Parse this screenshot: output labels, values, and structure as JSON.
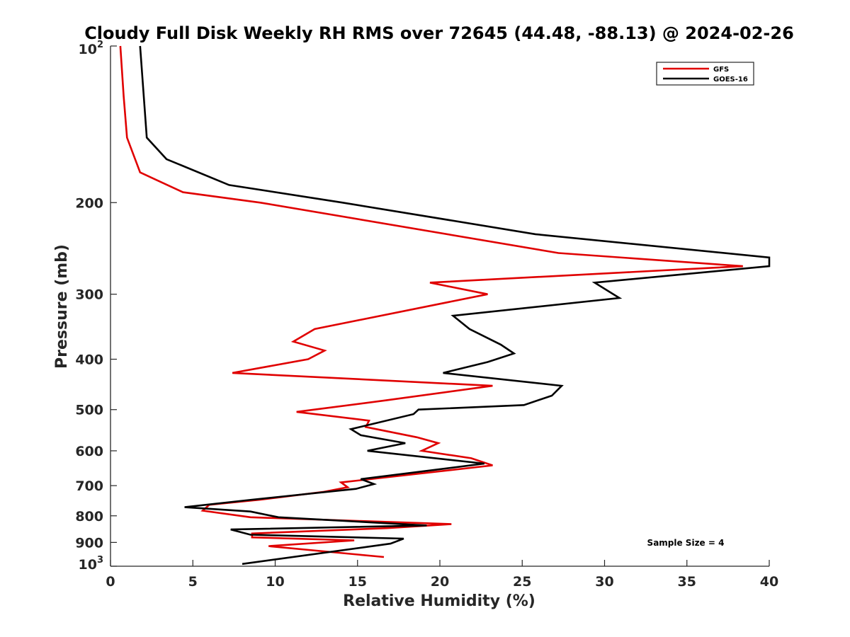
{
  "chart_data": {
    "type": "line",
    "title": "Cloudy Full Disk Weekly RH RMS over 72645 (44.48, -88.13) @ 2024-02-26",
    "xlabel": "Relative Humidity (%)",
    "ylabel": "Pressure (mb)",
    "xlim": [
      0,
      40
    ],
    "ylim": [
      100,
      1000
    ],
    "y_scale": "log",
    "y_reversed": true,
    "grid": false,
    "legend_position": "top-right",
    "x_ticks": [
      "0",
      "5",
      "10",
      "15",
      "20",
      "25",
      "30",
      "35",
      "40"
    ],
    "y_ticks": [
      {
        "value": 100,
        "base": "10",
        "exp": "2"
      },
      {
        "value": 200,
        "label": "200"
      },
      {
        "value": 300,
        "label": "300"
      },
      {
        "value": 400,
        "label": "400"
      },
      {
        "value": 500,
        "label": "500"
      },
      {
        "value": 600,
        "label": "600"
      },
      {
        "value": 700,
        "label": "700"
      },
      {
        "value": 800,
        "label": "800"
      },
      {
        "value": 900,
        "label": "900"
      },
      {
        "value": 1000,
        "base": "10",
        "exp": "3"
      }
    ],
    "annotation": "Sample Size = 4",
    "series": [
      {
        "name": "GFS",
        "color": "#e00000",
        "points": [
          [
            0.6,
            100
          ],
          [
            0.8,
            125
          ],
          [
            1.0,
            150
          ],
          [
            1.8,
            175
          ],
          [
            4.4,
            191
          ],
          [
            9.1,
            200
          ],
          [
            27.2,
            250
          ],
          [
            38.4,
            265
          ],
          [
            19.4,
            285
          ],
          [
            22.9,
            300
          ],
          [
            12.4,
            350
          ],
          [
            11.1,
            370
          ],
          [
            13.0,
            385
          ],
          [
            12.0,
            400
          ],
          [
            7.4,
            425
          ],
          [
            23.2,
            450
          ],
          [
            16.7,
            480
          ],
          [
            11.3,
            505
          ],
          [
            15.7,
            525
          ],
          [
            15.5,
            540
          ],
          [
            18.6,
            565
          ],
          [
            19.9,
            580
          ],
          [
            18.9,
            600
          ],
          [
            21.9,
            620
          ],
          [
            23.2,
            640
          ],
          [
            14.0,
            690
          ],
          [
            14.4,
            705
          ],
          [
            12.9,
            720
          ],
          [
            9.1,
            745
          ],
          [
            6.0,
            762
          ],
          [
            5.6,
            782
          ],
          [
            8.5,
            805
          ],
          [
            20.7,
            830
          ],
          [
            16.8,
            845
          ],
          [
            8.6,
            865
          ],
          [
            8.6,
            880
          ],
          [
            14.8,
            892
          ],
          [
            9.6,
            915
          ],
          [
            16.6,
            960
          ]
        ]
      },
      {
        "name": "GOES-16",
        "color": "#000000",
        "points": [
          [
            1.8,
            100
          ],
          [
            2.2,
            150
          ],
          [
            3.4,
            165
          ],
          [
            7.2,
            185
          ],
          [
            14.1,
            200
          ],
          [
            25.8,
            230
          ],
          [
            40.0,
            255
          ],
          [
            40.0,
            265
          ],
          [
            29.4,
            285
          ],
          [
            30.9,
            305
          ],
          [
            20.8,
            330
          ],
          [
            21.8,
            350
          ],
          [
            23.7,
            375
          ],
          [
            24.5,
            390
          ],
          [
            22.9,
            405
          ],
          [
            20.2,
            425
          ],
          [
            27.4,
            450
          ],
          [
            26.8,
            470
          ],
          [
            25.1,
            490
          ],
          [
            18.7,
            500
          ],
          [
            18.4,
            510
          ],
          [
            14.6,
            545
          ],
          [
            15.2,
            560
          ],
          [
            17.9,
            580
          ],
          [
            15.6,
            600
          ],
          [
            22.7,
            635
          ],
          [
            15.2,
            680
          ],
          [
            16.0,
            695
          ],
          [
            14.9,
            710
          ],
          [
            8.6,
            745
          ],
          [
            4.5,
            770
          ],
          [
            8.5,
            785
          ],
          [
            10.2,
            805
          ],
          [
            19.2,
            835
          ],
          [
            7.3,
            850
          ],
          [
            8.5,
            870
          ],
          [
            17.8,
            885
          ],
          [
            17.0,
            905
          ],
          [
            8.0,
            990
          ]
        ]
      }
    ]
  }
}
